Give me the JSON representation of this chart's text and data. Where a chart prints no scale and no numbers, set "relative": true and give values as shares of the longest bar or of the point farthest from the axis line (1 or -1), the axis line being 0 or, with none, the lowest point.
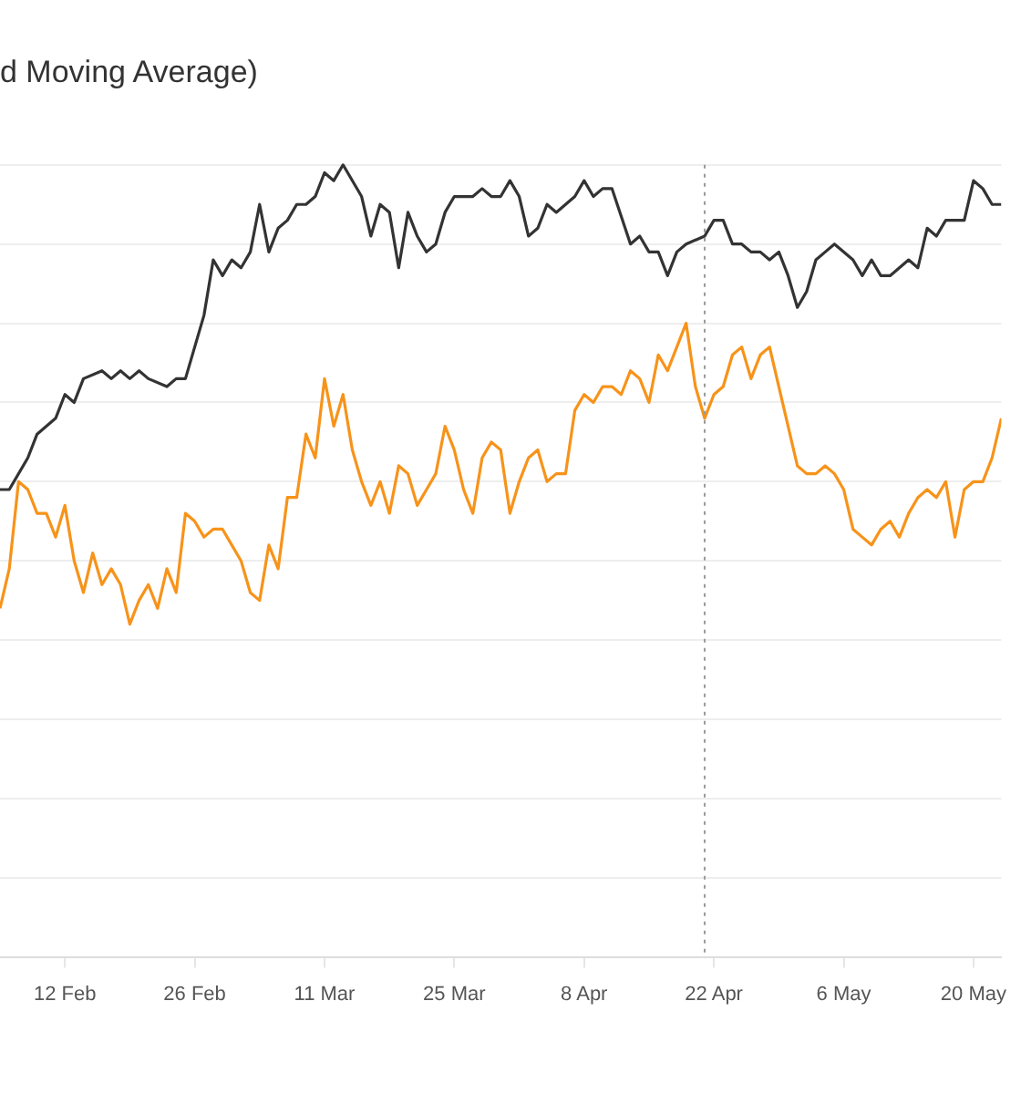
{
  "chart_data": {
    "type": "line",
    "title": "d Moving Average)",
    "relative": true,
    "grid": "y",
    "marker": "none",
    "line_style": "solid",
    "xlim": [
      "--02-05",
      "--05-23"
    ],
    "xticks": [
      {
        "value": "--02-12",
        "label": "12 Feb"
      },
      {
        "value": "--02-26",
        "label": "26 Feb"
      },
      {
        "value": "--03-11",
        "label": "11 Mar"
      },
      {
        "value": "--03-25",
        "label": "25 Mar"
      },
      {
        "value": "--04-08",
        "label": "8 Apr"
      },
      {
        "value": "--04-22",
        "label": "22 Apr"
      },
      {
        "value": "--05-06",
        "label": "6 May"
      },
      {
        "value": "--05-20",
        "label": "20 May"
      }
    ],
    "ref_lines": [
      {
        "axis": "x",
        "value": "--04-21",
        "color": "#9a9a9a",
        "line_style": "dotted"
      }
    ],
    "series": [
      {
        "color": "#333333",
        "x": [
          "--02-05",
          "--02-06",
          "--02-08",
          "--02-09",
          "--02-11",
          "--02-12",
          "--02-13",
          "--02-14",
          "--02-16",
          "--02-17",
          "--02-18",
          "--02-19",
          "--02-20",
          "--02-21",
          "--02-23",
          "--02-24",
          "--02-25",
          "--02-27",
          "--02-28",
          "--02-29",
          "--03-01",
          "--03-02",
          "--03-03",
          "--03-04",
          "--03-05",
          "--03-06",
          "--03-07",
          "--03-08",
          "--03-09",
          "--03-10",
          "--03-11",
          "--03-12",
          "--03-13",
          "--03-15",
          "--03-16",
          "--03-17",
          "--03-18",
          "--03-19",
          "--03-20",
          "--03-21",
          "--03-22",
          "--03-23",
          "--03-24",
          "--03-25",
          "--03-26",
          "--03-27",
          "--03-28",
          "--03-29",
          "--03-30",
          "--03-31",
          "--04-01",
          "--04-02",
          "--04-03",
          "--04-04",
          "--04-05",
          "--04-06",
          "--04-07",
          "--04-08",
          "--04-09",
          "--04-10",
          "--04-11",
          "--04-13",
          "--04-14",
          "--04-15",
          "--04-16",
          "--04-17",
          "--04-18",
          "--04-19",
          "--04-21",
          "--04-22",
          "--04-23",
          "--04-24",
          "--04-25",
          "--04-26",
          "--04-27",
          "--04-28",
          "--04-29",
          "--04-30",
          "--05-01",
          "--05-02",
          "--05-03",
          "--05-04",
          "--05-05",
          "--05-07",
          "--05-08",
          "--05-09",
          "--05-10",
          "--05-11",
          "--05-12",
          "--05-13",
          "--05-14",
          "--05-15",
          "--05-16",
          "--05-17",
          "--05-18",
          "--05-19",
          "--05-20",
          "--05-21",
          "--05-22",
          "--05-23"
        ],
        "values": [
          0.59,
          0.59,
          0.63,
          0.66,
          0.68,
          0.71,
          0.7,
          0.73,
          0.74,
          0.73,
          0.74,
          0.73,
          0.74,
          0.73,
          0.72,
          0.73,
          0.73,
          0.81,
          0.88,
          0.86,
          0.88,
          0.87,
          0.89,
          0.95,
          0.89,
          0.92,
          0.93,
          0.95,
          0.95,
          0.96,
          0.99,
          0.98,
          1,
          0.96,
          0.91,
          0.95,
          0.94,
          0.87,
          0.94,
          0.91,
          0.89,
          0.9,
          0.94,
          0.96,
          0.96,
          0.96,
          0.97,
          0.96,
          0.96,
          0.98,
          0.96,
          0.91,
          0.92,
          0.95,
          0.94,
          0.95,
          0.96,
          0.98,
          0.96,
          0.97,
          0.97,
          0.9,
          0.91,
          0.89,
          0.89,
          0.86,
          0.89,
          0.9,
          0.91,
          0.93,
          0.93,
          0.9,
          0.9,
          0.89,
          0.89,
          0.88,
          0.89,
          0.86,
          0.82,
          0.84,
          0.88,
          0.89,
          0.9,
          0.88,
          0.86,
          0.88,
          0.86,
          0.86,
          0.87,
          0.88,
          0.87,
          0.92,
          0.91,
          0.93,
          0.93,
          0.93,
          0.98,
          0.97,
          0.95,
          0.95
        ]
      },
      {
        "color": "#f7931a",
        "x": [
          "--02-05",
          "--02-06",
          "--02-07",
          "--02-08",
          "--02-09",
          "--02-10",
          "--02-11",
          "--02-12",
          "--02-13",
          "--02-14",
          "--02-15",
          "--02-16",
          "--02-17",
          "--02-18",
          "--02-19",
          "--02-20",
          "--02-21",
          "--02-22",
          "--02-23",
          "--02-24",
          "--02-25",
          "--02-26",
          "--02-27",
          "--02-28",
          "--02-29",
          "--03-01",
          "--03-02",
          "--03-03",
          "--03-04",
          "--03-05",
          "--03-06",
          "--03-07",
          "--03-08",
          "--03-09",
          "--03-10",
          "--03-11",
          "--03-12",
          "--03-13",
          "--03-14",
          "--03-15",
          "--03-16",
          "--03-17",
          "--03-18",
          "--03-19",
          "--03-20",
          "--03-21",
          "--03-22",
          "--03-23",
          "--03-24",
          "--03-25",
          "--03-26",
          "--03-27",
          "--03-28",
          "--03-29",
          "--03-30",
          "--03-31",
          "--04-01",
          "--04-02",
          "--04-03",
          "--04-04",
          "--04-05",
          "--04-06",
          "--04-07",
          "--04-08",
          "--04-09",
          "--04-10",
          "--04-11",
          "--04-12",
          "--04-13",
          "--04-14",
          "--04-15",
          "--04-16",
          "--04-17",
          "--04-18",
          "--04-19",
          "--04-20",
          "--04-21",
          "--04-22",
          "--04-23",
          "--04-24",
          "--04-25",
          "--04-26",
          "--04-27",
          "--04-28",
          "--04-29",
          "--05-01",
          "--05-02",
          "--05-03",
          "--05-04",
          "--05-05",
          "--05-06",
          "--05-07",
          "--05-08",
          "--05-09",
          "--05-10",
          "--05-11",
          "--05-12",
          "--05-13",
          "--05-14",
          "--05-15",
          "--05-16",
          "--05-17",
          "--05-18",
          "--05-19",
          "--05-20",
          "--05-21",
          "--05-22",
          "--05-23"
        ],
        "values": [
          0.44,
          0.49,
          0.6,
          0.59,
          0.56,
          0.56,
          0.53,
          0.57,
          0.5,
          0.46,
          0.51,
          0.47,
          0.49,
          0.47,
          0.42,
          0.45,
          0.47,
          0.44,
          0.49,
          0.46,
          0.56,
          0.55,
          0.53,
          0.54,
          0.54,
          0.52,
          0.5,
          0.46,
          0.45,
          0.52,
          0.49,
          0.58,
          0.58,
          0.66,
          0.63,
          0.73,
          0.67,
          0.71,
          0.64,
          0.6,
          0.57,
          0.6,
          0.56,
          0.62,
          0.61,
          0.57,
          0.59,
          0.61,
          0.67,
          0.64,
          0.59,
          0.56,
          0.63,
          0.65,
          0.64,
          0.56,
          0.6,
          0.63,
          0.64,
          0.6,
          0.61,
          0.61,
          0.69,
          0.71,
          0.7,
          0.72,
          0.72,
          0.71,
          0.74,
          0.73,
          0.7,
          0.76,
          0.74,
          0.77,
          0.8,
          0.72,
          0.68,
          0.71,
          0.72,
          0.76,
          0.77,
          0.73,
          0.76,
          0.77,
          0.72,
          0.62,
          0.61,
          0.61,
          0.62,
          0.61,
          0.59,
          0.54,
          0.53,
          0.52,
          0.54,
          0.55,
          0.53,
          0.56,
          0.58,
          0.59,
          0.58,
          0.6,
          0.53,
          0.59,
          0.6,
          0.6,
          0.63,
          0.68
        ]
      }
    ]
  }
}
